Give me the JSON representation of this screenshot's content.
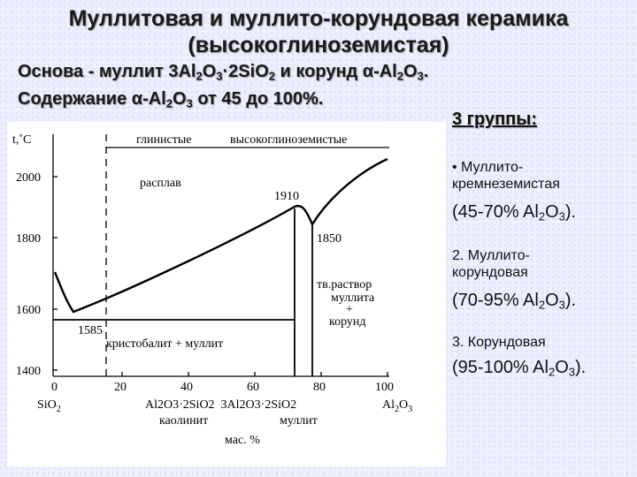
{
  "title": {
    "line1": "Муллитовая и муллито-корундовая керамика",
    "line2": "(высокоглиноземистая)"
  },
  "intro": {
    "l1_a": "Основа - муллит 3Al",
    "l1_s1": "2",
    "l1_b": "O",
    "l1_s2": "3",
    "l1_c": "·2SiO",
    "l1_s3": "2",
    "l1_d": " и корунд α-Al",
    "l1_s4": "2",
    "l1_e": "O",
    "l1_s5": "3",
    "l1_f": ".",
    "l2_a": "Содержание α-Al",
    "l2_s1": "2",
    "l2_b": "O",
    "l2_s2": "3",
    "l2_c": " от 45 до 100%."
  },
  "diagram": {
    "y_axis_label": "t,˚C",
    "y_ticks": [
      "2000",
      "1800",
      "1600",
      "1400"
    ],
    "x_ticks": [
      "0",
      "20",
      "40",
      "60",
      "80",
      "100"
    ],
    "region_top_left": "глинистые",
    "region_top_right": "высокоглиноземистые",
    "region_melt": "расплав",
    "temp_1910": "1910",
    "temp_1850": "1850",
    "temp_1585": "1585",
    "region_cristobalite": "кристобалит + муллит",
    "region_solid_solution": {
      "line1": "тв.раствор",
      "line2": "муллита",
      "line3": "+",
      "line4": "корунд"
    },
    "x_formula_sio2": "SiO",
    "x_formula_sio2_sub": "2",
    "x_formula_mullite": "Al2O3·2SiO2  3Al2O3·2SiO2",
    "x_formula_al2o3": "Al",
    "x_formula_al2o3_sub1": "2",
    "x_formula_al2o3_mid": "O",
    "x_formula_al2o3_sub2": "3",
    "x_name_kaolinite": "каолинит",
    "x_name_mullite": "муллит",
    "x_unit": "мас. %"
  },
  "groups": {
    "title": "3 группы:",
    "g1_label": "• Муллито-\nкремнеземистая",
    "g1_range_a": "(45-70% Al",
    "g1_range_s1": "2",
    "g1_range_b": "O",
    "g1_range_s2": "3",
    "g1_range_c": ").",
    "g2_label": "2. Муллито-\nкорундовая",
    "g2_range_a": "(70-95% Al",
    "g2_range_s1": "2",
    "g2_range_b": "O",
    "g2_range_s2": "3",
    "g2_range_c": ").",
    "g3_label": "3. Корундовая",
    "g3_range_a": "(95-100% Al",
    "g3_range_s1": "2",
    "g3_range_b": "O",
    "g3_range_s2": "3",
    "g3_range_c": ")."
  }
}
